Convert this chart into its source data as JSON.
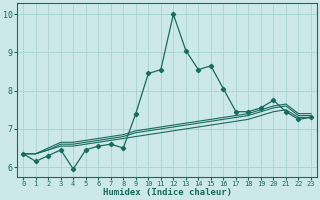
{
  "xlabel": "Humidex (Indice chaleur)",
  "ylabel": "",
  "xlim": [
    -0.5,
    23.5
  ],
  "ylim": [
    5.75,
    10.3
  ],
  "yticks": [
    6,
    7,
    8,
    9,
    10
  ],
  "xticks": [
    0,
    1,
    2,
    3,
    4,
    5,
    6,
    7,
    8,
    9,
    10,
    11,
    12,
    13,
    14,
    15,
    16,
    17,
    18,
    19,
    20,
    21,
    22,
    23
  ],
  "bg_color": "#cce8e8",
  "line_color": "#1a6b5e",
  "grid_color": "#a8d4d4",
  "series": [
    [
      6.35,
      6.15,
      6.3,
      6.45,
      5.95,
      6.45,
      6.55,
      6.6,
      6.5,
      7.4,
      8.45,
      8.55,
      10.0,
      9.05,
      8.55,
      8.65,
      8.05,
      7.45,
      7.45,
      7.55,
      7.75,
      7.45,
      7.25,
      7.3
    ],
    [
      6.35,
      6.35,
      6.45,
      6.55,
      6.55,
      6.6,
      6.65,
      6.7,
      6.75,
      6.8,
      6.85,
      6.9,
      6.95,
      7.0,
      7.05,
      7.1,
      7.15,
      7.2,
      7.25,
      7.35,
      7.45,
      7.5,
      7.3,
      7.3
    ],
    [
      6.35,
      6.35,
      6.45,
      6.6,
      6.6,
      6.65,
      6.7,
      6.75,
      6.8,
      6.9,
      6.95,
      7.0,
      7.05,
      7.1,
      7.15,
      7.2,
      7.25,
      7.3,
      7.35,
      7.45,
      7.55,
      7.6,
      7.35,
      7.35
    ],
    [
      6.35,
      6.35,
      6.5,
      6.65,
      6.65,
      6.7,
      6.75,
      6.8,
      6.85,
      6.95,
      7.0,
      7.05,
      7.1,
      7.15,
      7.2,
      7.25,
      7.3,
      7.35,
      7.4,
      7.5,
      7.6,
      7.65,
      7.4,
      7.4
    ]
  ]
}
